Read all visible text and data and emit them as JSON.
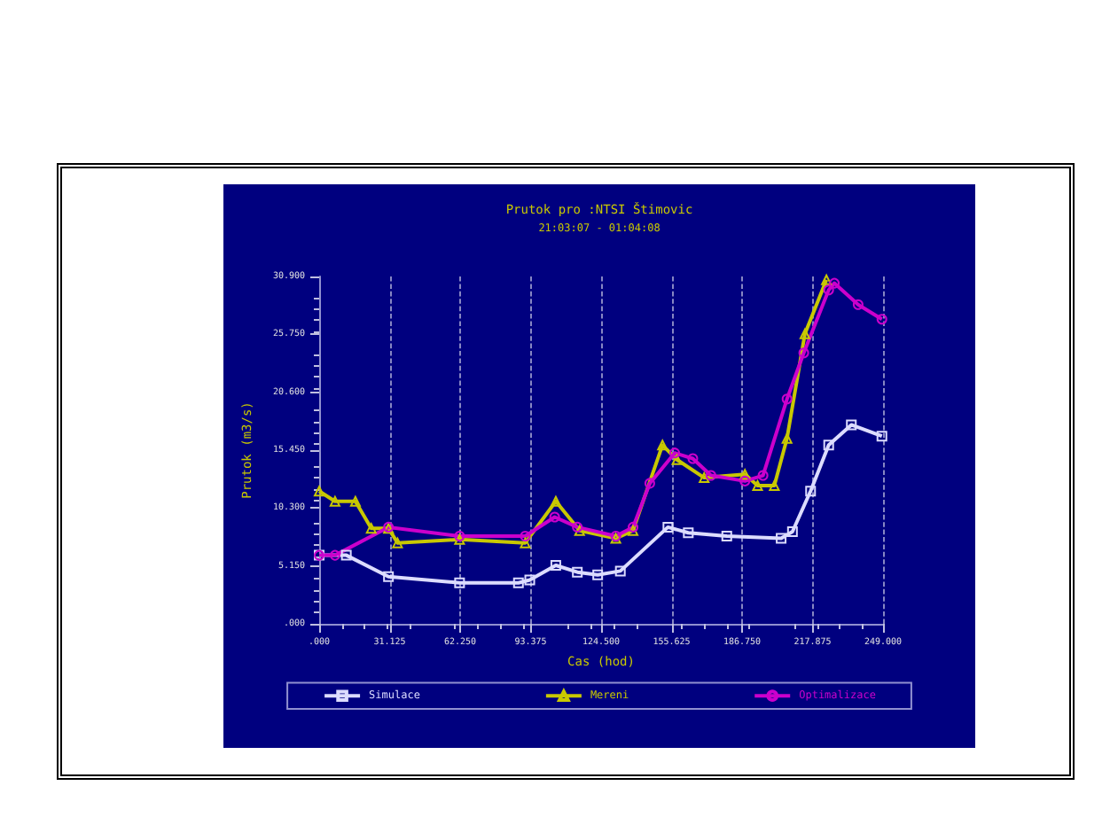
{
  "chart_data": {
    "type": "line",
    "title": "Prutok pro :NTSI Štimovic",
    "subtitle": "21:03:07 - 01:04:08",
    "xlabel": "Cas (hod)",
    "ylabel": "Prutok (m3/s)",
    "xlim": [
      0,
      249
    ],
    "ylim": [
      0,
      30.9
    ],
    "xticks": [
      {
        "value": 0,
        "label": ".000"
      },
      {
        "value": 31.125,
        "label": "31.125"
      },
      {
        "value": 62.25,
        "label": "62.250"
      },
      {
        "value": 93.375,
        "label": "93.375"
      },
      {
        "value": 124.5,
        "label": "124.500"
      },
      {
        "value": 155.625,
        "label": "155.625"
      },
      {
        "value": 186.75,
        "label": "186.750"
      },
      {
        "value": 217.875,
        "label": "217.875"
      },
      {
        "value": 249,
        "label": "249.000"
      }
    ],
    "yticks": [
      {
        "value": 0,
        "label": ".000"
      },
      {
        "value": 5.15,
        "label": "5.150"
      },
      {
        "value": 10.3,
        "label": "10.300"
      },
      {
        "value": 15.45,
        "label": "15.450"
      },
      {
        "value": 20.6,
        "label": "20.600"
      },
      {
        "value": 25.75,
        "label": "25.750"
      },
      {
        "value": 30.9,
        "label": "30.900"
      }
    ],
    "grid": "x",
    "legend": "bottom",
    "series": [
      {
        "name": "Simulace",
        "color": "#dcdcff",
        "marker": "square",
        "x": [
          0,
          12,
          30.6,
          62,
          88,
          93,
          104.5,
          114,
          123,
          133,
          154,
          163,
          180,
          204,
          209,
          217,
          225,
          235,
          248.5
        ],
        "values": [
          6.1,
          6.1,
          4.2,
          3.65,
          3.65,
          3.9,
          5.2,
          4.6,
          4.35,
          4.7,
          8.6,
          8.1,
          7.8,
          7.6,
          8.2,
          11.8,
          15.9,
          17.7,
          16.7
        ]
      },
      {
        "name": "Mereni",
        "color": "#c8c800",
        "marker": "triangle",
        "x": [
          0,
          7,
          16,
          23,
          30.6,
          34.6,
          62,
          91,
          104.5,
          115,
          131,
          138.6,
          151.6,
          158,
          170,
          188,
          193.6,
          201,
          206.6,
          214.5,
          224
        ],
        "values": [
          11.8,
          10.9,
          10.9,
          8.5,
          8.5,
          7.2,
          7.5,
          7.2,
          10.9,
          8.3,
          7.6,
          8.3,
          15.9,
          14.6,
          13,
          13.3,
          12.3,
          12.3,
          16.5,
          25.8,
          30.6
        ]
      },
      {
        "name": "Optimalizace",
        "color": "#cc00cc",
        "marker": "circle",
        "x": [
          0,
          7,
          30.6,
          62,
          91,
          104,
          114,
          131,
          138.6,
          146,
          157,
          165,
          173,
          188,
          196,
          206.6,
          214,
          225,
          227.5,
          238,
          248.5
        ],
        "values": [
          6.1,
          6.1,
          8.6,
          7.8,
          7.8,
          9.5,
          8.6,
          7.8,
          8.6,
          12.5,
          15.2,
          14.7,
          13.2,
          12.7,
          13.2,
          20,
          24.1,
          29.7,
          30.3,
          28.4,
          27.1
        ]
      }
    ]
  }
}
